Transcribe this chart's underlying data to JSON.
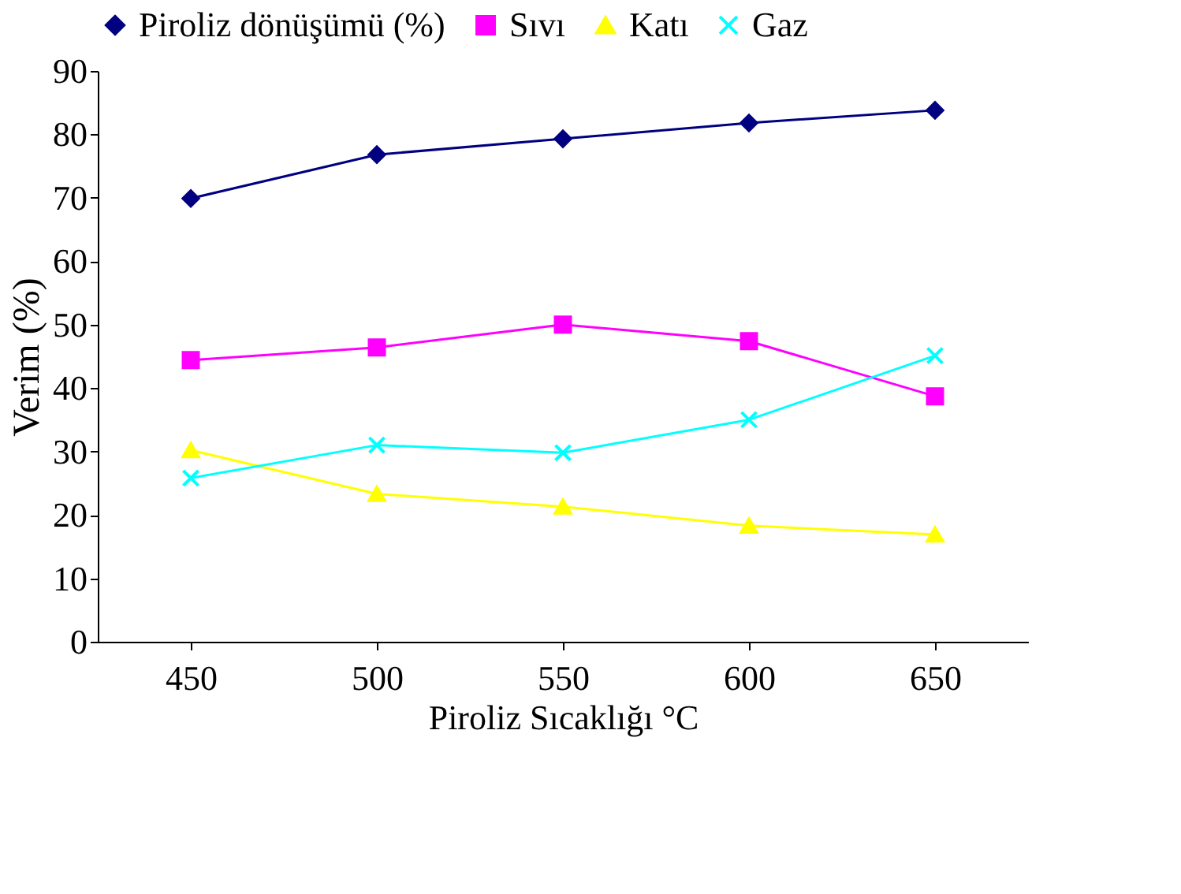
{
  "chart_data": {
    "type": "line",
    "xlabel": "Piroliz Sıcaklığı °C",
    "ylabel": "Verim (%)",
    "categories": [
      "450",
      "500",
      "550",
      "600",
      "650"
    ],
    "series": [
      {
        "name": "Piroliz dönüşümü (%)",
        "color": "#000080",
        "marker": "diamond",
        "values": [
          69.9,
          76.8,
          79.3,
          81.8,
          83.8
        ]
      },
      {
        "name": "Sıvı",
        "color": "#ff00ff",
        "marker": "square",
        "values": [
          44.4,
          46.4,
          50.0,
          47.4,
          38.7
        ]
      },
      {
        "name": "Katı",
        "color": "#ffff00",
        "marker": "triangle",
        "values": [
          30.2,
          23.3,
          21.3,
          18.3,
          16.9
        ]
      },
      {
        "name": "Gaz",
        "color": "#00ffff",
        "marker": "cross",
        "values": [
          25.8,
          31.0,
          29.8,
          35.0,
          45.1
        ]
      }
    ],
    "ylim": [
      0,
      90
    ],
    "yticks": [
      0,
      10,
      20,
      30,
      40,
      50,
      60,
      70,
      80,
      90
    ],
    "grid": false,
    "legend": "top",
    "line_style": "solid"
  }
}
